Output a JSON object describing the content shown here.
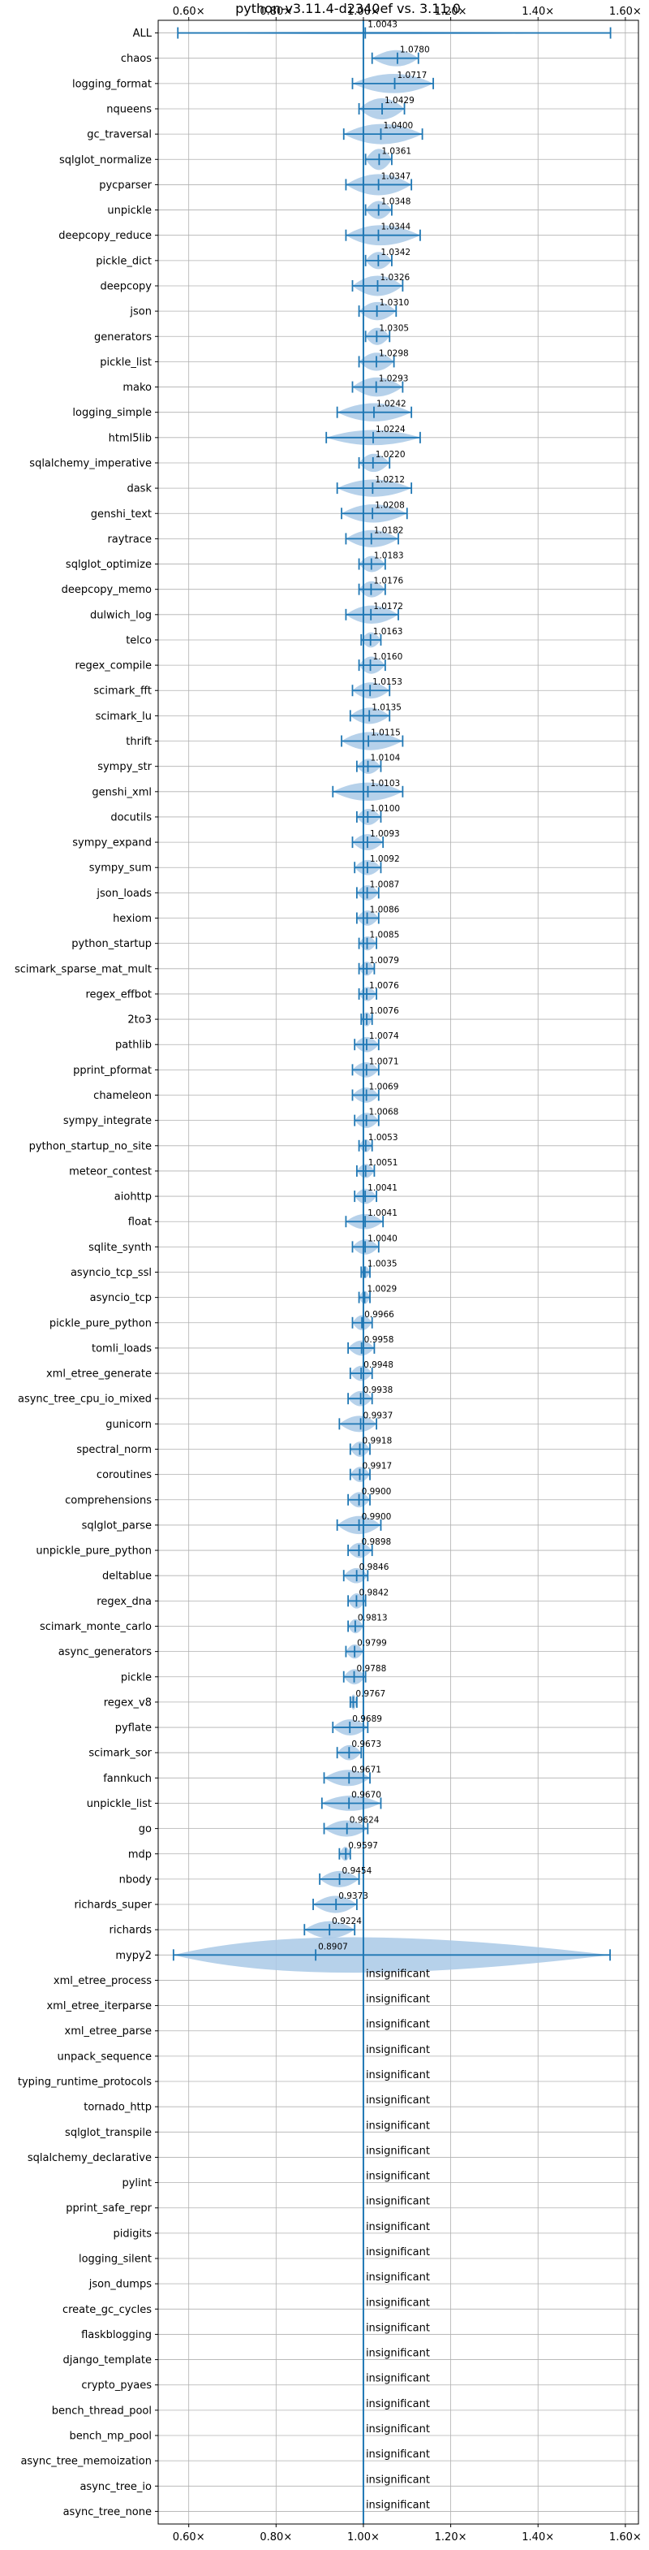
{
  "chart_data": {
    "type": "violin",
    "title": "python-v3.11.4-d2340ef vs. 3.11.0",
    "xlim": [
      0.53,
      1.63
    ],
    "x_ticks": [
      0.6,
      0.8,
      1.0,
      1.2,
      1.4,
      1.6
    ],
    "x_tick_labels": [
      "0.60×",
      "0.80×",
      "1.00×",
      "1.20×",
      "1.40×",
      "1.60×"
    ],
    "reference_line": 1.0,
    "grid": true,
    "insignificant_label": "insignificant",
    "rows": [
      {
        "name": "ALL",
        "value": "1.0043",
        "mean": 1.0043,
        "min": 0.575,
        "max": 1.566,
        "width": 0.05
      },
      {
        "name": "chaos",
        "value": "1.0780",
        "mean": 1.078,
        "min": 1.02,
        "max": 1.126,
        "width": 0.32
      },
      {
        "name": "logging_format",
        "value": "1.0717",
        "mean": 1.0717,
        "min": 0.975,
        "max": 1.16,
        "width": 0.38
      },
      {
        "name": "nqueens",
        "value": "1.0429",
        "mean": 1.0429,
        "min": 0.99,
        "max": 1.094,
        "width": 0.42
      },
      {
        "name": "gc_traversal",
        "value": "1.0400",
        "mean": 1.04,
        "min": 0.955,
        "max": 1.135,
        "width": 0.4
      },
      {
        "name": "sqlglot_normalize",
        "value": "1.0361",
        "mean": 1.0361,
        "min": 1.005,
        "max": 1.065,
        "width": 0.42
      },
      {
        "name": "pycparser",
        "value": "1.0347",
        "mean": 1.0347,
        "min": 0.96,
        "max": 1.11,
        "width": 0.42
      },
      {
        "name": "unpickle",
        "value": "1.0348",
        "mean": 1.0348,
        "min": 1.005,
        "max": 1.065,
        "width": 0.36
      },
      {
        "name": "deepcopy_reduce",
        "value": "1.0344",
        "mean": 1.0344,
        "min": 0.96,
        "max": 1.13,
        "width": 0.4
      },
      {
        "name": "pickle_dict",
        "value": "1.0342",
        "mean": 1.0342,
        "min": 1.005,
        "max": 1.065,
        "width": 0.34
      },
      {
        "name": "deepcopy",
        "value": "1.0326",
        "mean": 1.0326,
        "min": 0.975,
        "max": 1.09,
        "width": 0.4
      },
      {
        "name": "json",
        "value": "1.0310",
        "mean": 1.031,
        "min": 0.99,
        "max": 1.075,
        "width": 0.36
      },
      {
        "name": "generators",
        "value": "1.0305",
        "mean": 1.0305,
        "min": 1.005,
        "max": 1.06,
        "width": 0.34
      },
      {
        "name": "pickle_list",
        "value": "1.0298",
        "mean": 1.0298,
        "min": 0.99,
        "max": 1.07,
        "width": 0.36
      },
      {
        "name": "mako",
        "value": "1.0293",
        "mean": 1.0293,
        "min": 0.975,
        "max": 1.09,
        "width": 0.38
      },
      {
        "name": "logging_simple",
        "value": "1.0242",
        "mean": 1.0242,
        "min": 0.94,
        "max": 1.11,
        "width": 0.36
      },
      {
        "name": "html5lib",
        "value": "1.0224",
        "mean": 1.0224,
        "min": 0.915,
        "max": 1.13,
        "width": 0.3
      },
      {
        "name": "sqlalchemy_imperative",
        "value": "1.0220",
        "mean": 1.022,
        "min": 0.99,
        "max": 1.06,
        "width": 0.36
      },
      {
        "name": "dask",
        "value": "1.0212",
        "mean": 1.0212,
        "min": 0.94,
        "max": 1.11,
        "width": 0.34
      },
      {
        "name": "genshi_text",
        "value": "1.0208",
        "mean": 1.0208,
        "min": 0.95,
        "max": 1.1,
        "width": 0.36
      },
      {
        "name": "raytrace",
        "value": "1.0182",
        "mean": 1.0182,
        "min": 0.96,
        "max": 1.08,
        "width": 0.34
      },
      {
        "name": "sqlglot_optimize",
        "value": "1.0183",
        "mean": 1.0183,
        "min": 0.99,
        "max": 1.05,
        "width": 0.32
      },
      {
        "name": "deepcopy_memo",
        "value": "1.0176",
        "mean": 1.0176,
        "min": 0.99,
        "max": 1.05,
        "width": 0.32
      },
      {
        "name": "dulwich_log",
        "value": "1.0172",
        "mean": 1.0172,
        "min": 0.96,
        "max": 1.08,
        "width": 0.36
      },
      {
        "name": "telco",
        "value": "1.0163",
        "mean": 1.0163,
        "min": 0.995,
        "max": 1.04,
        "width": 0.3
      },
      {
        "name": "regex_compile",
        "value": "1.0160",
        "mean": 1.016,
        "min": 0.99,
        "max": 1.05,
        "width": 0.34
      },
      {
        "name": "scimark_fft",
        "value": "1.0153",
        "mean": 1.0153,
        "min": 0.975,
        "max": 1.06,
        "width": 0.32
      },
      {
        "name": "scimark_lu",
        "value": "1.0135",
        "mean": 1.0135,
        "min": 0.97,
        "max": 1.06,
        "width": 0.32
      },
      {
        "name": "thrift",
        "value": "1.0115",
        "mean": 1.0115,
        "min": 0.95,
        "max": 1.09,
        "width": 0.36
      },
      {
        "name": "sympy_str",
        "value": "1.0104",
        "mean": 1.0104,
        "min": 0.985,
        "max": 1.04,
        "width": 0.3
      },
      {
        "name": "genshi_xml",
        "value": "1.0103",
        "mean": 1.0103,
        "min": 0.93,
        "max": 1.09,
        "width": 0.36
      },
      {
        "name": "docutils",
        "value": "1.0100",
        "mean": 1.01,
        "min": 0.985,
        "max": 1.04,
        "width": 0.32
      },
      {
        "name": "sympy_expand",
        "value": "1.0093",
        "mean": 1.0093,
        "min": 0.975,
        "max": 1.045,
        "width": 0.32
      },
      {
        "name": "sympy_sum",
        "value": "1.0092",
        "mean": 1.0092,
        "min": 0.98,
        "max": 1.04,
        "width": 0.3
      },
      {
        "name": "json_loads",
        "value": "1.0087",
        "mean": 1.0087,
        "min": 0.985,
        "max": 1.035,
        "width": 0.3
      },
      {
        "name": "hexiom",
        "value": "1.0086",
        "mean": 1.0086,
        "min": 0.985,
        "max": 1.035,
        "width": 0.3
      },
      {
        "name": "python_startup",
        "value": "1.0085",
        "mean": 1.0085,
        "min": 0.99,
        "max": 1.03,
        "width": 0.28
      },
      {
        "name": "scimark_sparse_mat_mult",
        "value": "1.0079",
        "mean": 1.0079,
        "min": 0.99,
        "max": 1.025,
        "width": 0.28
      },
      {
        "name": "regex_effbot",
        "value": "1.0076",
        "mean": 1.0076,
        "min": 0.99,
        "max": 1.03,
        "width": 0.28
      },
      {
        "name": "2to3",
        "value": "1.0076",
        "mean": 1.0076,
        "min": 0.995,
        "max": 1.02,
        "width": 0.28
      },
      {
        "name": "pathlib",
        "value": "1.0074",
        "mean": 1.0074,
        "min": 0.98,
        "max": 1.035,
        "width": 0.3
      },
      {
        "name": "pprint_pformat",
        "value": "1.0071",
        "mean": 1.0071,
        "min": 0.975,
        "max": 1.035,
        "width": 0.3
      },
      {
        "name": "chameleon",
        "value": "1.0069",
        "mean": 1.0069,
        "min": 0.975,
        "max": 1.035,
        "width": 0.3
      },
      {
        "name": "sympy_integrate",
        "value": "1.0068",
        "mean": 1.0068,
        "min": 0.98,
        "max": 1.035,
        "width": 0.3
      },
      {
        "name": "python_startup_no_site",
        "value": "1.0053",
        "mean": 1.0053,
        "min": 0.99,
        "max": 1.02,
        "width": 0.26
      },
      {
        "name": "meteor_contest",
        "value": "1.0051",
        "mean": 1.0051,
        "min": 0.985,
        "max": 1.025,
        "width": 0.28
      },
      {
        "name": "aiohttp",
        "value": "1.0041",
        "mean": 1.0041,
        "min": 0.98,
        "max": 1.03,
        "width": 0.3
      },
      {
        "name": "float",
        "value": "1.0041",
        "mean": 1.0041,
        "min": 0.96,
        "max": 1.045,
        "width": 0.3
      },
      {
        "name": "sqlite_synth",
        "value": "1.0040",
        "mean": 1.004,
        "min": 0.975,
        "max": 1.035,
        "width": 0.3
      },
      {
        "name": "asyncio_tcp_ssl",
        "value": "1.0035",
        "mean": 1.0035,
        "min": 0.995,
        "max": 1.015,
        "width": 0.24
      },
      {
        "name": "asyncio_tcp",
        "value": "1.0029",
        "mean": 1.0029,
        "min": 0.99,
        "max": 1.015,
        "width": 0.26
      },
      {
        "name": "pickle_pure_python",
        "value": "0.9966",
        "mean": 0.9966,
        "min": 0.975,
        "max": 1.02,
        "width": 0.3
      },
      {
        "name": "tomli_loads",
        "value": "0.9958",
        "mean": 0.9958,
        "min": 0.965,
        "max": 1.025,
        "width": 0.3
      },
      {
        "name": "xml_etree_generate",
        "value": "0.9948",
        "mean": 0.9948,
        "min": 0.97,
        "max": 1.02,
        "width": 0.3
      },
      {
        "name": "async_tree_cpu_io_mixed",
        "value": "0.9938",
        "mean": 0.9938,
        "min": 0.965,
        "max": 1.02,
        "width": 0.3
      },
      {
        "name": "gunicorn",
        "value": "0.9937",
        "mean": 0.9937,
        "min": 0.945,
        "max": 1.03,
        "width": 0.32
      },
      {
        "name": "spectral_norm",
        "value": "0.9918",
        "mean": 0.9918,
        "min": 0.97,
        "max": 1.015,
        "width": 0.3
      },
      {
        "name": "coroutines",
        "value": "0.9917",
        "mean": 0.9917,
        "min": 0.97,
        "max": 1.015,
        "width": 0.3
      },
      {
        "name": "comprehensions",
        "value": "0.9900",
        "mean": 0.99,
        "min": 0.965,
        "max": 1.015,
        "width": 0.3
      },
      {
        "name": "sqlglot_parse",
        "value": "0.9900",
        "mean": 0.99,
        "min": 0.94,
        "max": 1.04,
        "width": 0.36
      },
      {
        "name": "unpickle_pure_python",
        "value": "0.9898",
        "mean": 0.9898,
        "min": 0.965,
        "max": 1.02,
        "width": 0.3
      },
      {
        "name": "deltablue",
        "value": "0.9846",
        "mean": 0.9846,
        "min": 0.955,
        "max": 1.01,
        "width": 0.3
      },
      {
        "name": "regex_dna",
        "value": "0.9842",
        "mean": 0.9842,
        "min": 0.965,
        "max": 1.005,
        "width": 0.3
      },
      {
        "name": "scimark_monte_carlo",
        "value": "0.9813",
        "mean": 0.9813,
        "min": 0.965,
        "max": 1.0,
        "width": 0.28
      },
      {
        "name": "async_generators",
        "value": "0.9799",
        "mean": 0.9799,
        "min": 0.96,
        "max": 1.0,
        "width": 0.28
      },
      {
        "name": "pickle",
        "value": "0.9788",
        "mean": 0.9788,
        "min": 0.955,
        "max": 1.005,
        "width": 0.3
      },
      {
        "name": "regex_v8",
        "value": "0.9767",
        "mean": 0.9767,
        "min": 0.97,
        "max": 0.985,
        "width": 0.3
      },
      {
        "name": "pyflate",
        "value": "0.9689",
        "mean": 0.9689,
        "min": 0.93,
        "max": 1.01,
        "width": 0.32
      },
      {
        "name": "scimark_sor",
        "value": "0.9673",
        "mean": 0.9673,
        "min": 0.94,
        "max": 0.995,
        "width": 0.3
      },
      {
        "name": "fannkuch",
        "value": "0.9671",
        "mean": 0.9671,
        "min": 0.91,
        "max": 1.015,
        "width": 0.32
      },
      {
        "name": "unpickle_list",
        "value": "0.9670",
        "mean": 0.967,
        "min": 0.905,
        "max": 1.04,
        "width": 0.3
      },
      {
        "name": "go",
        "value": "0.9624",
        "mean": 0.9624,
        "min": 0.91,
        "max": 1.01,
        "width": 0.32
      },
      {
        "name": "mdp",
        "value": "0.9597",
        "mean": 0.9597,
        "min": 0.945,
        "max": 0.97,
        "width": 0.28
      },
      {
        "name": "nbody",
        "value": "0.9454",
        "mean": 0.9454,
        "min": 0.9,
        "max": 0.99,
        "width": 0.32
      },
      {
        "name": "richards_super",
        "value": "0.9373",
        "mean": 0.9373,
        "min": 0.885,
        "max": 0.985,
        "width": 0.34
      },
      {
        "name": "richards",
        "value": "0.9224",
        "mean": 0.9224,
        "min": 0.865,
        "max": 0.98,
        "width": 0.34
      },
      {
        "name": "mypy2",
        "value": "0.8907",
        "mean": 0.8907,
        "min": 0.565,
        "max": 1.565,
        "width": 0.7
      },
      {
        "name": "xml_etree_process",
        "value": "",
        "insignificant": true
      },
      {
        "name": "xml_etree_iterparse",
        "value": "",
        "insignificant": true
      },
      {
        "name": "xml_etree_parse",
        "value": "",
        "insignificant": true
      },
      {
        "name": "unpack_sequence",
        "value": "",
        "insignificant": true
      },
      {
        "name": "typing_runtime_protocols",
        "value": "",
        "insignificant": true
      },
      {
        "name": "tornado_http",
        "value": "",
        "insignificant": true
      },
      {
        "name": "sqlglot_transpile",
        "value": "",
        "insignificant": true
      },
      {
        "name": "sqlalchemy_declarative",
        "value": "",
        "insignificant": true
      },
      {
        "name": "pylint",
        "value": "",
        "insignificant": true
      },
      {
        "name": "pprint_safe_repr",
        "value": "",
        "insignificant": true
      },
      {
        "name": "pidigits",
        "value": "",
        "insignificant": true
      },
      {
        "name": "logging_silent",
        "value": "",
        "insignificant": true
      },
      {
        "name": "json_dumps",
        "value": "",
        "insignificant": true
      },
      {
        "name": "create_gc_cycles",
        "value": "",
        "insignificant": true
      },
      {
        "name": "flaskblogging",
        "value": "",
        "insignificant": true
      },
      {
        "name": "django_template",
        "value": "",
        "insignificant": true
      },
      {
        "name": "crypto_pyaes",
        "value": "",
        "insignificant": true
      },
      {
        "name": "bench_thread_pool",
        "value": "",
        "insignificant": true
      },
      {
        "name": "bench_mp_pool",
        "value": "",
        "insignificant": true
      },
      {
        "name": "async_tree_memoization",
        "value": "",
        "insignificant": true
      },
      {
        "name": "async_tree_io",
        "value": "",
        "insignificant": true
      },
      {
        "name": "async_tree_none",
        "value": "",
        "insignificant": true
      }
    ],
    "colors": {
      "violin": "#a9c9e6",
      "line": "#1f77b4",
      "grid": "#b0b0b0",
      "axis": "#000000"
    }
  }
}
